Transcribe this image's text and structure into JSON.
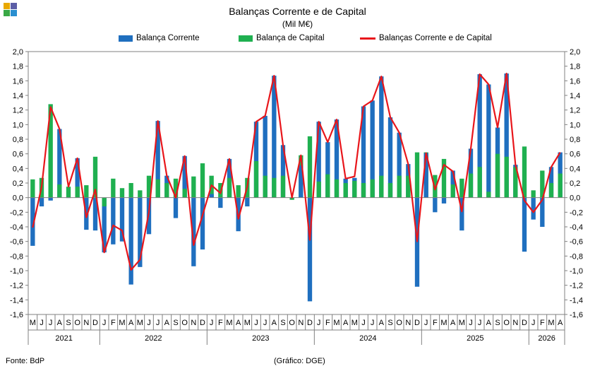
{
  "header": {
    "title": "Balanças Corrente e de Capital",
    "subtitle": "(Mil M€)"
  },
  "footer": {
    "source": "Fonte: BdP",
    "credit": "(Gráfico: DGE)"
  },
  "colors": {
    "current": "#1f6fbf",
    "capital": "#1fb050",
    "total": "#e8161b",
    "logo": [
      "#e8a800",
      "#5b5ea6",
      "#39a845",
      "#2a8fd0"
    ]
  },
  "chart_data": {
    "type": "bar",
    "ylim": [
      -1.6,
      2.0
    ],
    "yticks": [
      "2,0",
      "1,8",
      "1,6",
      "1,4",
      "1,2",
      "1,0",
      "0,8",
      "0,6",
      "0,4",
      "0,2",
      "0,0",
      "-0,2",
      "-0,4",
      "-0,6",
      "-0,8",
      "-1,0",
      "-1,2",
      "-1,4",
      "-1,6"
    ],
    "categories": [
      "M",
      "J",
      "J",
      "A",
      "S",
      "O",
      "N",
      "D",
      "J",
      "F",
      "M",
      "A",
      "M",
      "J",
      "J",
      "A",
      "S",
      "O",
      "N",
      "D",
      "J",
      "F",
      "M",
      "A",
      "M",
      "J",
      "J",
      "A",
      "S",
      "O",
      "N",
      "D",
      "J",
      "F",
      "M",
      "A",
      "M",
      "J",
      "J",
      "A",
      "S",
      "O",
      "N",
      "D",
      "J",
      "F",
      "M",
      "A",
      "M",
      "J",
      "J",
      "A",
      "S",
      "O",
      "N",
      "D",
      "J",
      "F",
      "M",
      "A"
    ],
    "years": [
      {
        "label": "2021",
        "start": 0,
        "count": 8
      },
      {
        "label": "2022",
        "start": 8,
        "count": 12
      },
      {
        "label": "2023",
        "start": 20,
        "count": 12
      },
      {
        "label": "2024",
        "start": 32,
        "count": 12
      },
      {
        "label": "2025",
        "start": 44,
        "count": 12
      },
      {
        "label": "2026",
        "start": 56,
        "count": 4
      }
    ],
    "series": [
      {
        "name": "Balança Corrente",
        "kind": "bar",
        "values": [
          -0.66,
          -0.12,
          -0.04,
          0.94,
          0.0,
          0.54,
          -0.44,
          -0.45,
          -0.75,
          -0.64,
          -0.6,
          -1.19,
          -0.95,
          -0.5,
          1.05,
          0.3,
          -0.28,
          0.57,
          -0.94,
          -0.71,
          0.05,
          -0.14,
          0.53,
          -0.46,
          -0.12,
          1.04,
          1.12,
          1.67,
          0.72,
          0.0,
          0.44,
          -1.42,
          1.04,
          0.76,
          1.07,
          0.26,
          0.27,
          1.25,
          1.33,
          1.66,
          1.1,
          0.89,
          0.46,
          -1.22,
          0.61,
          -0.2,
          -0.08,
          0.37,
          -0.45,
          0.67,
          1.69,
          1.55,
          0.96,
          1.7,
          0.45,
          -0.74,
          -0.3,
          -0.4,
          0.42,
          0.62
        ]
      },
      {
        "name": "Balança de Capital",
        "kind": "bar",
        "values": [
          0.25,
          0.27,
          1.28,
          0.18,
          0.15,
          0.15,
          0.17,
          0.56,
          -0.12,
          0.26,
          0.13,
          0.2,
          0.1,
          0.3,
          0.25,
          0.2,
          0.26,
          0.12,
          0.29,
          0.47,
          0.3,
          0.2,
          0.27,
          0.17,
          0.27,
          0.5,
          0.3,
          0.27,
          0.3,
          -0.03,
          0.58,
          0.84,
          0.22,
          0.32,
          0.25,
          0.2,
          0.23,
          0.2,
          0.25,
          0.3,
          0.2,
          0.3,
          0.3,
          0.62,
          0.62,
          0.31,
          0.53,
          0.18,
          0.26,
          0.33,
          0.42,
          0.08,
          0.6,
          0.56,
          0.42,
          0.7,
          0.1,
          0.37,
          0.2,
          0.33
        ]
      },
      {
        "name": "Balanças Corrente e de Capital",
        "kind": "line",
        "values": [
          -0.41,
          0.15,
          1.24,
          0.94,
          0.15,
          0.54,
          -0.27,
          0.11,
          -0.75,
          -0.38,
          -0.45,
          -0.99,
          -0.85,
          -0.2,
          1.05,
          0.3,
          0.0,
          0.57,
          -0.65,
          -0.24,
          0.17,
          0.06,
          0.53,
          -0.29,
          0.15,
          1.04,
          1.12,
          1.67,
          0.72,
          0.0,
          0.58,
          -0.58,
          1.04,
          0.76,
          1.07,
          0.26,
          0.29,
          1.25,
          1.33,
          1.66,
          1.1,
          0.89,
          0.46,
          -0.6,
          0.61,
          0.11,
          0.45,
          0.36,
          -0.19,
          0.67,
          1.69,
          1.55,
          0.96,
          1.7,
          0.45,
          -0.04,
          -0.2,
          -0.03,
          0.42,
          0.62
        ]
      }
    ]
  }
}
